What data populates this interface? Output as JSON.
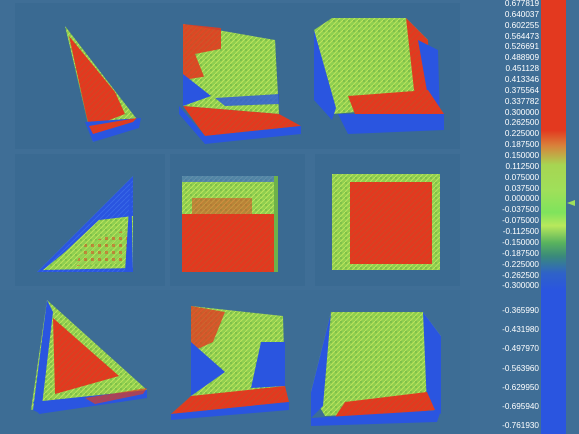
{
  "colors": {
    "background": "#3f6e96",
    "panel": "#3a6a92",
    "positive": "#e3391f",
    "neutral": "#9fe05a",
    "negative": "#2a55e0"
  },
  "legend": {
    "ticks": [
      "0.677819",
      "0.640037",
      "0.602255",
      "0.564473",
      "0.526691",
      "0.488909",
      "0.451128",
      "0.413346",
      "0.375564",
      "0.337782",
      "0.300000",
      "0.262500",
      "0.225000",
      "0.187500",
      "0.150000",
      "0.112500",
      "0.075000",
      "0.037500",
      "0.000000",
      "-0.037500",
      "-0.075000",
      "-0.112500",
      "-0.150000",
      "-0.187500",
      "-0.225000",
      "-0.262500",
      "-0.300000",
      "-0.365990",
      "-0.431980",
      "-0.497970",
      "-0.563960",
      "-0.629950",
      "-0.695940",
      "-0.761930"
    ],
    "marker_icon": "triangle-pointer-icon"
  },
  "views": [
    {
      "name": "wedge-perspective",
      "icon": "wedge-render"
    },
    {
      "name": "bracket-perspective",
      "icon": "bracket-render"
    },
    {
      "name": "corner-perspective",
      "icon": "corner-render"
    },
    {
      "name": "triangle-side",
      "icon": "triangle-face"
    },
    {
      "name": "plate-front",
      "icon": "square-face"
    },
    {
      "name": "plate-back",
      "icon": "square-face"
    },
    {
      "name": "wedge-alt",
      "icon": "wedge-render"
    },
    {
      "name": "bracket-alt",
      "icon": "bracket-render"
    },
    {
      "name": "corner-alt",
      "icon": "corner-render"
    }
  ]
}
